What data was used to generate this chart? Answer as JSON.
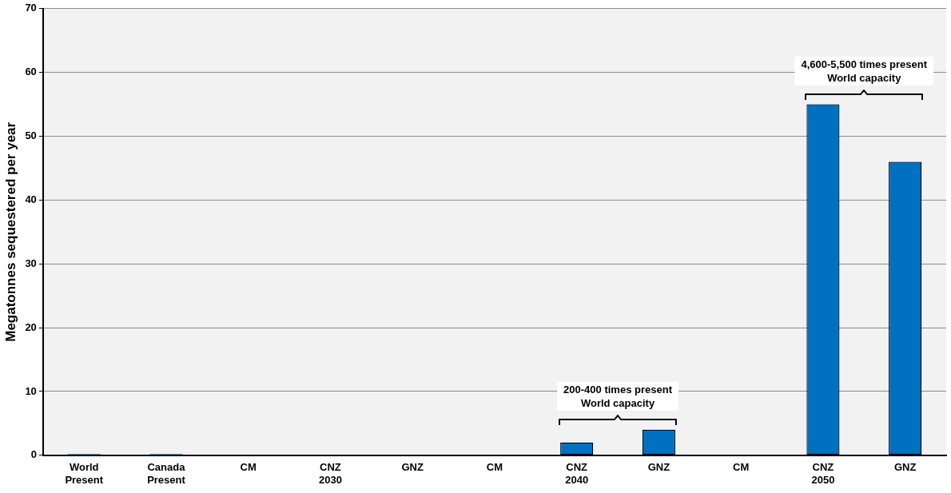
{
  "chart_data": {
    "type": "bar",
    "ylabel": "Megatonnes sequestered per year",
    "categories": [
      "World\nPresent",
      "Canada\nPresent",
      "CM",
      "CNZ\n2030",
      "GNZ",
      "CM",
      "CNZ\n2040",
      "GNZ",
      "CM",
      "CNZ\n2050",
      "GNZ"
    ],
    "values": [
      0.2,
      0.2,
      0,
      0,
      0,
      0,
      2,
      4,
      0,
      55,
      46
    ],
    "color": "#0070c0",
    "ylim": [
      0,
      70
    ],
    "yticks": [
      0,
      10,
      20,
      30,
      40,
      50,
      60,
      70
    ],
    "grid": "y",
    "legend": false,
    "annotations": [
      "200-400 times present\nWorld capacity",
      "4,600-5,500 times present\nWorld capacity"
    ]
  }
}
